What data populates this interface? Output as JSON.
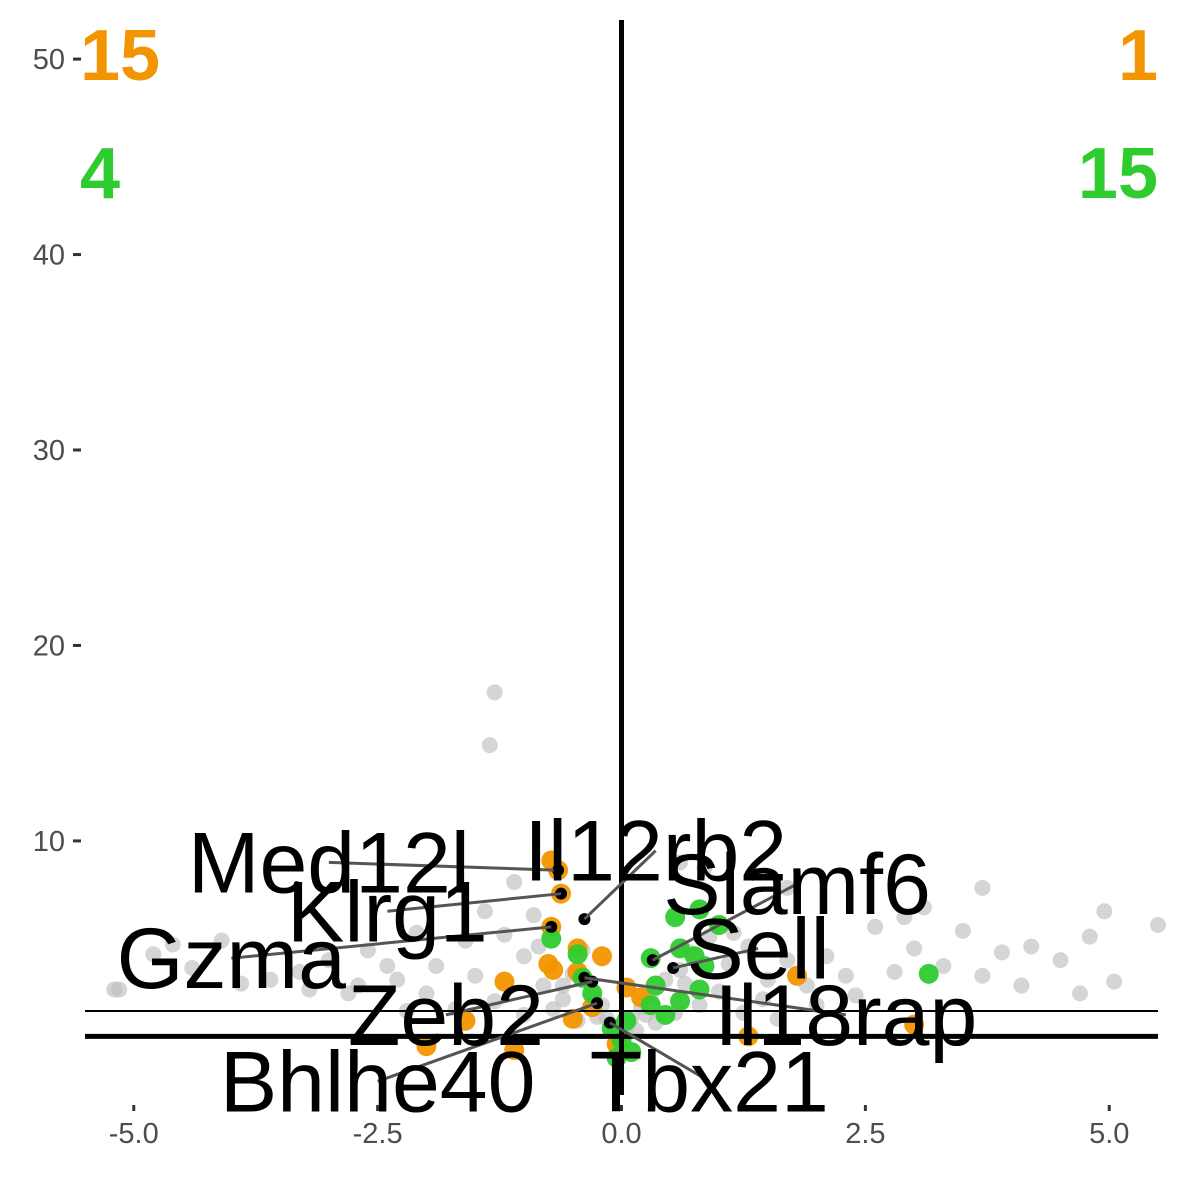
{
  "colors": {
    "background": "#ffffff",
    "nonsig": "#bebebe",
    "down_group": "#f29500",
    "up_group": "#2fcc2f",
    "highlight": "#000000",
    "axis": "#000000",
    "tick_text": "#4d4d4d"
  },
  "counts": {
    "orange_left": "15",
    "orange_right": "1",
    "green_left": "4",
    "green_right": "15"
  },
  "chart_data": {
    "type": "scatter",
    "title": "",
    "xlabel": "",
    "ylabel": "",
    "xlim": [
      -5.5,
      5.5
    ],
    "ylim": [
      -3,
      52
    ],
    "x_ticks": [
      {
        "value": -5.0,
        "label": "-5.0"
      },
      {
        "value": -2.5,
        "label": "-2.5"
      },
      {
        "value": 0.0,
        "label": "0.0"
      },
      {
        "value": 2.5,
        "label": "2.5"
      },
      {
        "value": 5.0,
        "label": "5.0"
      }
    ],
    "y_ticks": [
      {
        "value": 10,
        "label": "10"
      },
      {
        "value": 20,
        "label": "20"
      },
      {
        "value": 30,
        "label": "30"
      },
      {
        "value": 40,
        "label": "40"
      },
      {
        "value": 50,
        "label": "50"
      }
    ],
    "reference_lines": {
      "vertical_x": 0,
      "horizontal_y": [
        1.3,
        0
      ]
    },
    "grid": false,
    "series": [
      {
        "key": "nonsig",
        "color": "#bebebe",
        "points": [
          [
            -1.3,
            17.6
          ],
          [
            -1.35,
            14.9
          ],
          [
            -5.15,
            2.4
          ],
          [
            -5.2,
            2.4
          ],
          [
            -4.1,
            4.9
          ],
          [
            -4.6,
            4.7
          ],
          [
            -4.8,
            4.2
          ],
          [
            -4.4,
            3.5
          ],
          [
            -3.9,
            2.7
          ],
          [
            -3.6,
            2.9
          ],
          [
            -3.3,
            3.3
          ],
          [
            -3.0,
            3.9
          ],
          [
            -2.8,
            2.2
          ],
          [
            -2.6,
            4.4
          ],
          [
            -2.3,
            2.9
          ],
          [
            -2.1,
            5.3
          ],
          [
            -1.9,
            3.6
          ],
          [
            -1.6,
            4.9
          ],
          [
            -1.4,
            6.4
          ],
          [
            -1.1,
            7.9
          ],
          [
            -0.9,
            6.2
          ],
          [
            -1.0,
            4.1
          ],
          [
            -0.8,
            2.6
          ],
          [
            -0.6,
            1.9
          ],
          [
            -0.5,
            3.2
          ],
          [
            -0.4,
            4.4
          ],
          [
            -0.3,
            2.2
          ],
          [
            -0.2,
            1.6
          ],
          [
            -0.15,
            0.9
          ],
          [
            -0.1,
            0.6
          ],
          [
            0.05,
            0.4
          ],
          [
            0.1,
            0.9
          ],
          [
            0.2,
            1.5
          ],
          [
            0.3,
            2.1
          ],
          [
            0.45,
            2.9
          ],
          [
            0.6,
            3.4
          ],
          [
            0.7,
            4.3
          ],
          [
            0.9,
            5.1
          ],
          [
            1.1,
            3.7
          ],
          [
            1.3,
            4.6
          ],
          [
            1.5,
            2.9
          ],
          [
            1.7,
            3.9
          ],
          [
            1.9,
            2.6
          ],
          [
            2.1,
            4.1
          ],
          [
            2.3,
            3.1
          ],
          [
            2.6,
            5.6
          ],
          [
            2.8,
            3.3
          ],
          [
            3.0,
            4.5
          ],
          [
            3.3,
            3.6
          ],
          [
            3.5,
            5.4
          ],
          [
            3.7,
            3.1
          ],
          [
            3.9,
            4.3
          ],
          [
            4.1,
            2.6
          ],
          [
            4.2,
            4.6
          ],
          [
            4.5,
            3.9
          ],
          [
            4.7,
            2.2
          ],
          [
            4.8,
            5.1
          ],
          [
            5.5,
            5.7
          ],
          [
            5.05,
            2.8
          ],
          [
            4.95,
            6.4
          ],
          [
            3.7,
            7.6
          ],
          [
            3.1,
            6.6
          ],
          [
            2.9,
            6.1
          ],
          [
            1.7,
            7.6
          ],
          [
            0.85,
            8.6
          ],
          [
            0.6,
            8.9
          ],
          [
            -1.2,
            5.2
          ],
          [
            -1.5,
            3.1
          ],
          [
            -2.0,
            2.2
          ],
          [
            -2.4,
            3.6
          ],
          [
            -2.7,
            2.6
          ],
          [
            -3.2,
            2.4
          ],
          [
            -0.7,
            1.4
          ],
          [
            -0.45,
            0.8
          ],
          [
            0.35,
            0.7
          ],
          [
            0.55,
            1.2
          ],
          [
            0.8,
            1.6
          ],
          [
            1.0,
            2.3
          ],
          [
            1.25,
            1.2
          ],
          [
            1.45,
            1.9
          ],
          [
            1.6,
            0.9
          ],
          [
            -1.0,
            1.1
          ],
          [
            -1.3,
            1.8
          ],
          [
            -1.7,
            1.4
          ],
          [
            2.0,
            1.6
          ],
          [
            2.4,
            2.1
          ],
          [
            -2.2,
            1.3
          ],
          [
            0.0,
            0.15
          ],
          [
            0.15,
            0.3
          ],
          [
            -0.05,
            0.25
          ],
          [
            -0.25,
            1.0
          ],
          [
            0.25,
            1.1
          ],
          [
            -0.6,
            2.6
          ],
          [
            0.65,
            2.7
          ],
          [
            -0.85,
            4.6
          ],
          [
            1.15,
            5.3
          ]
        ]
      },
      {
        "key": "orange",
        "color": "#f29500",
        "points": [
          [
            -0.72,
            9.0
          ],
          [
            -0.65,
            8.5
          ],
          [
            -0.62,
            7.3
          ],
          [
            -0.72,
            5.6
          ],
          [
            -0.45,
            4.5
          ],
          [
            -0.2,
            4.1
          ],
          [
            -0.75,
            3.7
          ],
          [
            -0.7,
            3.4
          ],
          [
            -0.45,
            3.3
          ],
          [
            -1.2,
            2.8
          ],
          [
            1.8,
            3.1
          ],
          [
            3.0,
            0.6
          ],
          [
            1.3,
            0.0
          ],
          [
            -1.1,
            -0.7
          ],
          [
            -2.0,
            -0.5
          ],
          [
            -0.3,
            1.5
          ],
          [
            -1.6,
            0.8
          ],
          [
            -0.5,
            0.9
          ],
          [
            -0.05,
            -0.4
          ],
          [
            0.05,
            2.5
          ],
          [
            0.2,
            2.0
          ]
        ]
      },
      {
        "key": "green",
        "color": "#2fcc2f",
        "points": [
          [
            -0.72,
            5.0
          ],
          [
            -0.45,
            4.2
          ],
          [
            0.8,
            6.5
          ],
          [
            0.55,
            6.1
          ],
          [
            1.0,
            5.7
          ],
          [
            0.6,
            4.5
          ],
          [
            0.75,
            4.1
          ],
          [
            0.3,
            4.0
          ],
          [
            0.85,
            3.6
          ],
          [
            0.35,
            2.6
          ],
          [
            0.8,
            2.4
          ],
          [
            3.15,
            3.2
          ],
          [
            -0.4,
            3.0
          ],
          [
            0.3,
            1.6
          ],
          [
            0.05,
            0.8
          ],
          [
            -0.1,
            0.4
          ],
          [
            0.0,
            -0.2
          ],
          [
            0.1,
            -0.8
          ],
          [
            -0.05,
            -1.1
          ],
          [
            0.45,
            1.1
          ],
          [
            -0.3,
            2.2
          ],
          [
            0.6,
            1.8
          ]
        ]
      },
      {
        "key": "highlight",
        "color": "#000000",
        "points": [
          [
            -0.65,
            8.5
          ],
          [
            -0.62,
            7.3
          ],
          [
            -0.38,
            6.0
          ],
          [
            -0.72,
            5.6
          ],
          [
            0.32,
            3.9
          ],
          [
            0.53,
            3.5
          ],
          [
            -0.38,
            3.0
          ],
          [
            -0.3,
            2.8
          ],
          [
            -0.25,
            1.7
          ],
          [
            -0.12,
            0.7
          ]
        ]
      }
    ],
    "annotations": [
      {
        "label": "Med12l",
        "point": [
          -0.65,
          8.5
        ],
        "text_at": [
          -3.0,
          8.9
        ],
        "anchor": "middle"
      },
      {
        "label": "Il12rb2",
        "point": [
          -0.38,
          6.0
        ],
        "text_at": [
          0.35,
          9.5
        ],
        "anchor": "middle"
      },
      {
        "label": "Klrg1",
        "point": [
          -0.62,
          7.3
        ],
        "text_at": [
          -2.4,
          6.4
        ],
        "anchor": "middle"
      },
      {
        "label": "Slamf6",
        "point": [
          0.32,
          3.9
        ],
        "text_at": [
          1.8,
          7.8
        ],
        "anchor": "middle"
      },
      {
        "label": "Gzma",
        "point": [
          -0.72,
          5.6
        ],
        "text_at": [
          -4.0,
          4.0
        ],
        "anchor": "middle"
      },
      {
        "label": "Sell",
        "point": [
          0.53,
          3.5
        ],
        "text_at": [
          1.4,
          4.5
        ],
        "anchor": "middle"
      },
      {
        "label": "Zeb2",
        "point": [
          -0.3,
          2.8
        ],
        "text_at": [
          -1.8,
          1.1
        ],
        "anchor": "middle"
      },
      {
        "label": "Il18rap",
        "point": [
          -0.38,
          3.0
        ],
        "text_at": [
          2.3,
          1.1
        ],
        "anchor": "middle"
      },
      {
        "label": "Bhlhe40",
        "point": [
          -0.25,
          1.7
        ],
        "text_at": [
          -2.5,
          -2.3
        ],
        "anchor": "middle"
      },
      {
        "label": "Tbx21",
        "point": [
          -0.12,
          0.7
        ],
        "text_at": [
          0.9,
          -2.3
        ],
        "anchor": "middle"
      }
    ]
  }
}
